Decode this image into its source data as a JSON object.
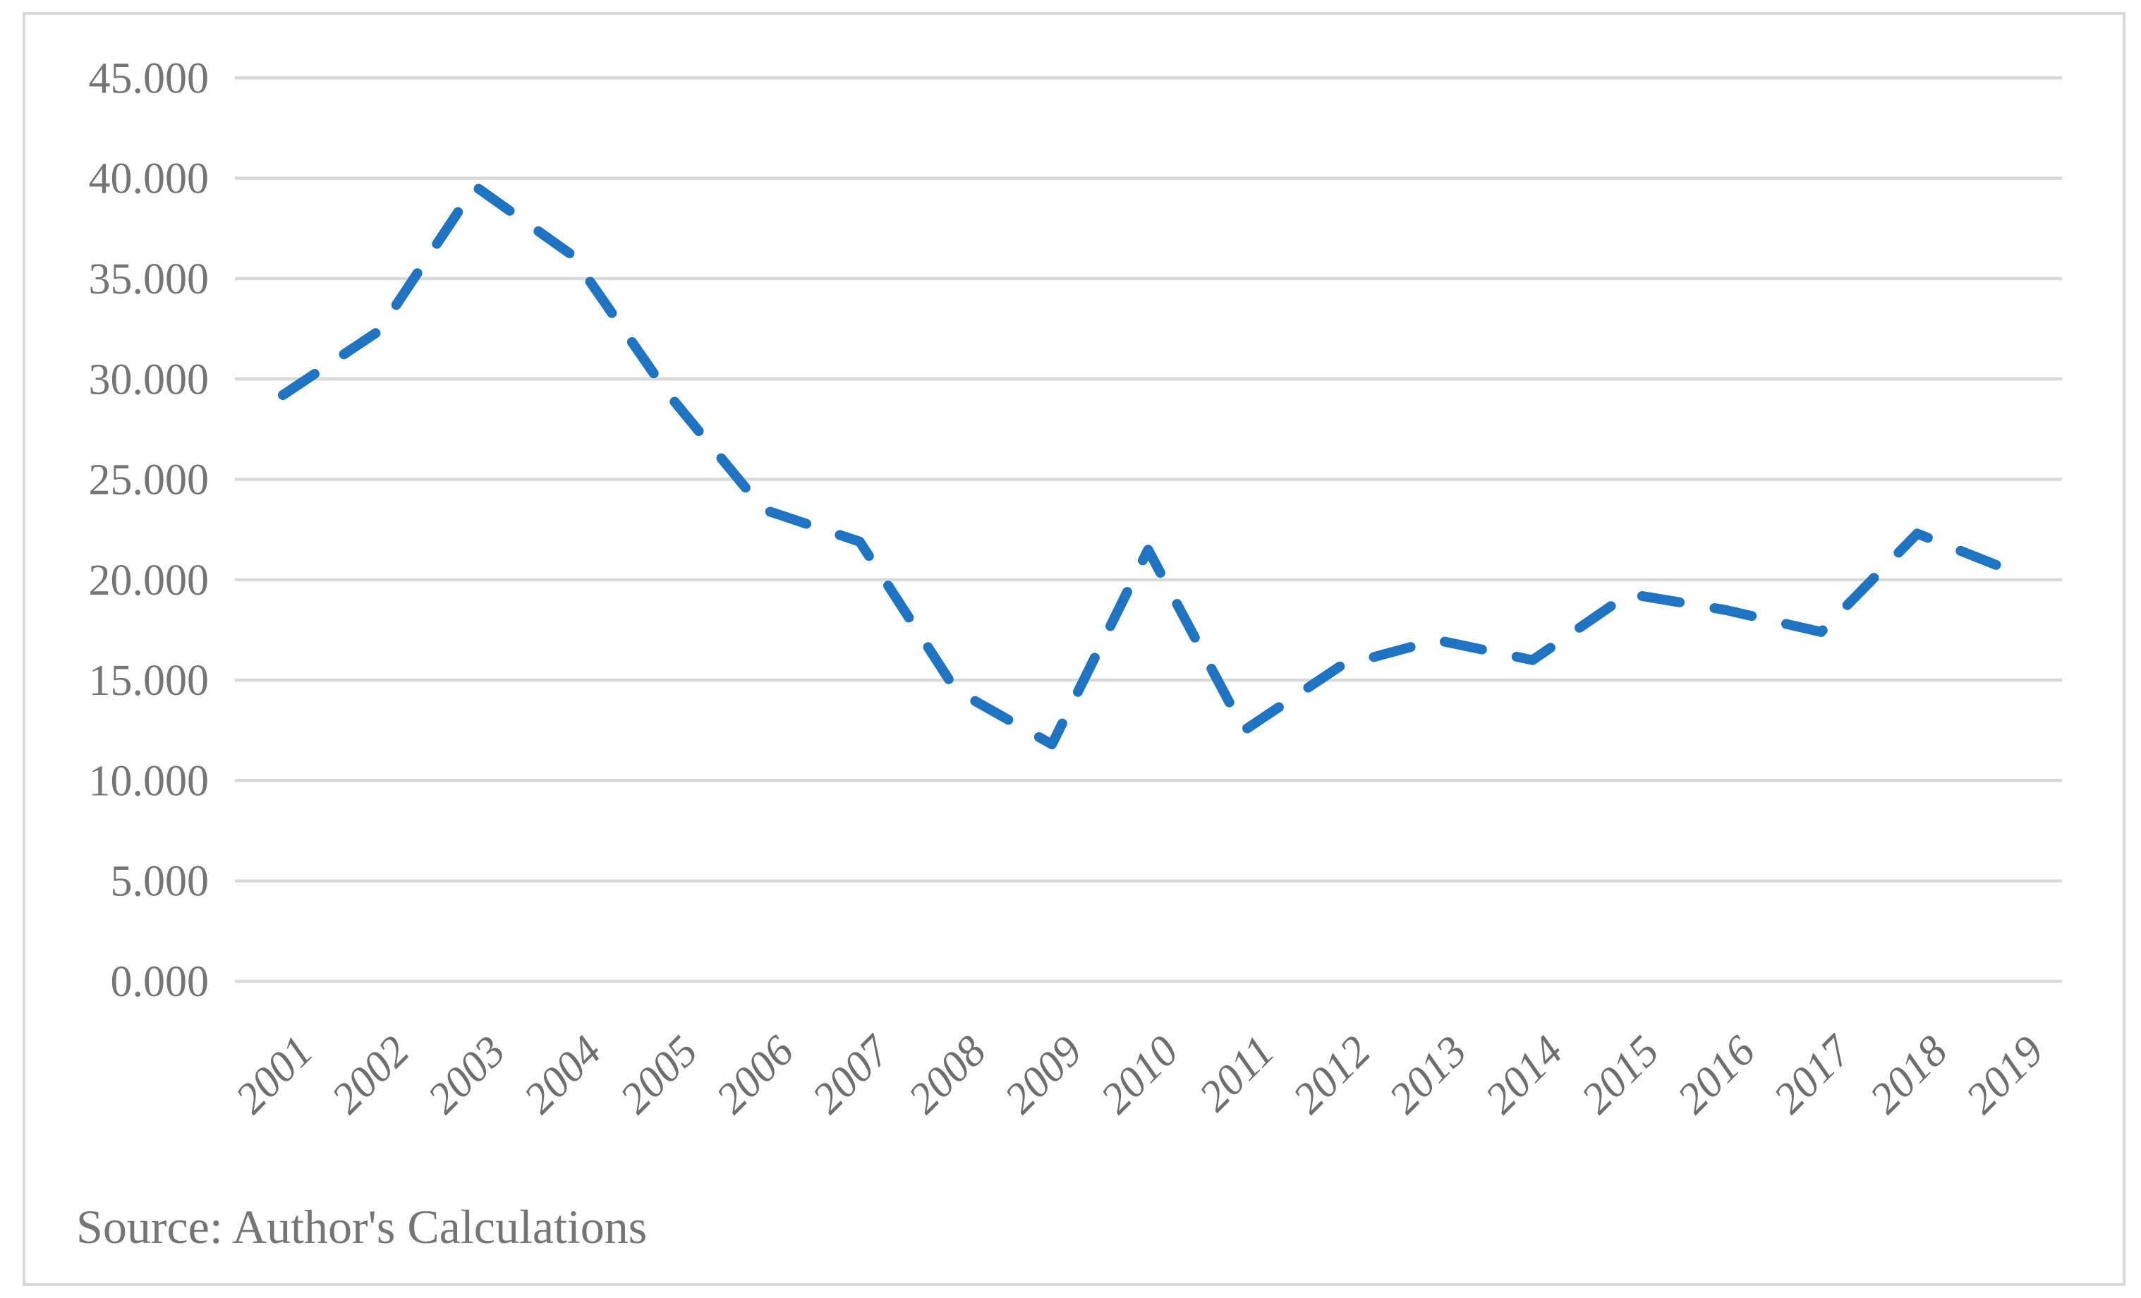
{
  "chart_data": {
    "type": "line",
    "title": "",
    "xlabel": "",
    "ylabel": "",
    "categories": [
      "2001",
      "2002",
      "2003",
      "2004",
      "2005",
      "2006",
      "2007",
      "2008",
      "2009",
      "2010",
      "2011",
      "2012",
      "2013",
      "2014",
      "2015",
      "2016",
      "2017",
      "2018",
      "2019"
    ],
    "values": [
      29.2,
      32.4,
      39.6,
      36.2,
      29.3,
      23.5,
      21.9,
      14.5,
      11.8,
      21.5,
      12.5,
      15.7,
      17.0,
      16.0,
      19.3,
      18.5,
      17.4,
      22.3,
      20.4
    ],
    "ylim": [
      0,
      45
    ],
    "ytick_step": 5,
    "ytick_labels": [
      "0.000",
      "5.000",
      "10.000",
      "15.000",
      "20.000",
      "25.000",
      "30.000",
      "35.000",
      "40.000",
      "45.000"
    ],
    "grid": true,
    "legend": "none",
    "marker": "none",
    "line_style": "dashed",
    "line_color": "#1E73C3"
  },
  "colors": {
    "grid": "#D9D9D9",
    "border": "#D9D9D9",
    "y_axis_text": "#757575",
    "x_axis_text": "#6E6E6E",
    "background": "#FFFFFF"
  },
  "source_note": "Source: Author's Calculations"
}
